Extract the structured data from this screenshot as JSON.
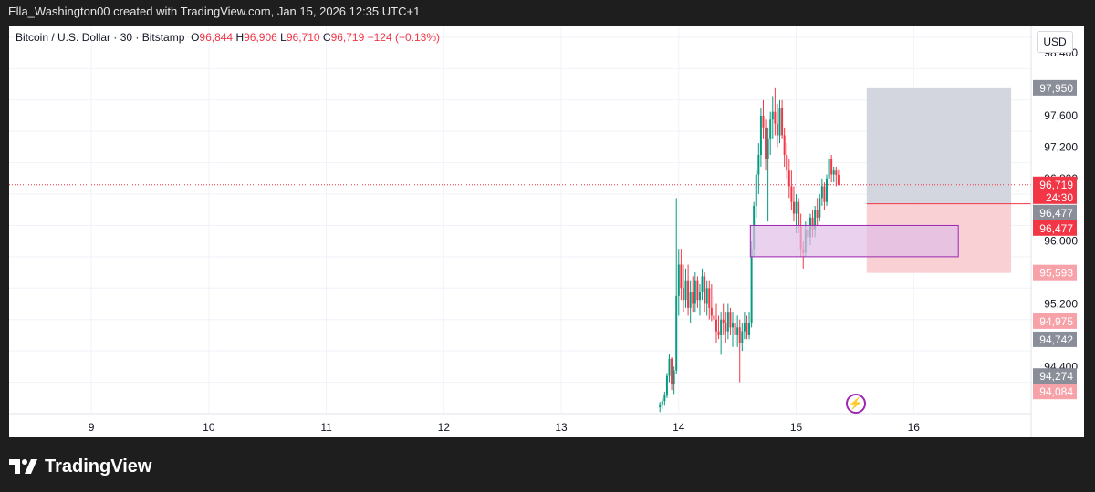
{
  "header": {
    "attribution": "Ella_Washington00 created with TradingView.com, Jan 15, 2026 12:35 UTC+1"
  },
  "legend": {
    "symbol": "Bitcoin / U.S. Dollar · 30 · Bitstamp",
    "open_label": "O",
    "open": "96,844",
    "high_label": "H",
    "high": "96,906",
    "low_label": "L",
    "low": "96,710",
    "close_label": "C",
    "close": "96,719",
    "change": "−124 (−0.13%)"
  },
  "currency_button": "USD",
  "brand": {
    "name": "TradingView"
  },
  "icons": {
    "flash": "flash-icon",
    "logo": "tradingview-logo-icon"
  },
  "colors": {
    "up": "#089981",
    "down": "#f23645",
    "target_zone": "#d1d4dc",
    "stop_zone": "#f8c9cc",
    "box": "#e1bee7",
    "box_border": "#9c27b0"
  },
  "chart_data": {
    "type": "candlestick",
    "x_tick_labels": [
      "9",
      "10",
      "11",
      "12",
      "13",
      "14",
      "15",
      "16"
    ],
    "x_ticks": [
      9,
      10,
      11,
      12,
      13,
      14,
      15,
      16
    ],
    "xlim": [
      8.3,
      17.0
    ],
    "ylim": [
      93800,
      98750
    ],
    "y_tick_labels": [
      {
        "v": 98400,
        "t": "98,400"
      },
      {
        "v": 97600,
        "t": "97,600"
      },
      {
        "v": 97200,
        "t": "97,200"
      },
      {
        "v": 96800,
        "t": "96,800"
      },
      {
        "v": 96000,
        "t": "96,000"
      },
      {
        "v": 95200,
        "t": "95,200"
      },
      {
        "v": 94400,
        "t": "94,400"
      }
    ],
    "price_labels": [
      {
        "v": 97950,
        "t": "97,950",
        "style": "gray"
      },
      {
        "v": 96719,
        "t": "96,719",
        "style": "red",
        "sub": "24:30"
      },
      {
        "v": 96477,
        "t": "96,477",
        "style": "gray"
      },
      {
        "v": 96477,
        "t": "96,477",
        "style": "red"
      },
      {
        "v": 95593,
        "t": "95,593",
        "style": "pink"
      },
      {
        "v": 94975,
        "t": "94,975",
        "style": "pink"
      },
      {
        "v": 94742,
        "t": "94,742",
        "style": "gray"
      },
      {
        "v": 94274,
        "t": "94,274",
        "style": "gray"
      },
      {
        "v": 94084,
        "t": "94,084",
        "style": "pink"
      }
    ],
    "last_price": 96719,
    "long_position": {
      "x_start": 15.6,
      "x_end": 16.83,
      "entry": 96477,
      "target": 97950,
      "stop": 95593
    },
    "zone_box": {
      "x_start": 14.61,
      "x_end": 16.38,
      "top": 96200,
      "bottom": 95800
    },
    "candles": [
      {
        "t": 13.84,
        "o": 93880,
        "h": 93950,
        "l": 93820,
        "c": 93920
      },
      {
        "t": 13.86,
        "o": 93920,
        "h": 94000,
        "l": 93860,
        "c": 93960
      },
      {
        "t": 13.88,
        "o": 93960,
        "h": 94080,
        "l": 93900,
        "c": 94040
      },
      {
        "t": 13.9,
        "o": 94030,
        "h": 94320,
        "l": 94000,
        "c": 94280
      },
      {
        "t": 13.92,
        "o": 94280,
        "h": 94560,
        "l": 94200,
        "c": 94500
      },
      {
        "t": 13.94,
        "o": 94500,
        "h": 94520,
        "l": 94100,
        "c": 94180
      },
      {
        "t": 13.96,
        "o": 94180,
        "h": 94400,
        "l": 94050,
        "c": 94350
      },
      {
        "t": 13.98,
        "o": 94350,
        "h": 96550,
        "l": 94300,
        "c": 95300
      },
      {
        "t": 14.0,
        "o": 95300,
        "h": 95900,
        "l": 95050,
        "c": 95700
      },
      {
        "t": 14.02,
        "o": 95700,
        "h": 95900,
        "l": 95250,
        "c": 95400
      },
      {
        "t": 14.04,
        "o": 95400,
        "h": 95700,
        "l": 95100,
        "c": 95250
      },
      {
        "t": 14.06,
        "o": 95250,
        "h": 95650,
        "l": 95150,
        "c": 95500
      },
      {
        "t": 14.08,
        "o": 95500,
        "h": 95700,
        "l": 95050,
        "c": 95150
      },
      {
        "t": 14.1,
        "o": 95150,
        "h": 95500,
        "l": 94950,
        "c": 95350
      },
      {
        "t": 14.12,
        "o": 95350,
        "h": 95550,
        "l": 95100,
        "c": 95200
      },
      {
        "t": 14.14,
        "o": 95200,
        "h": 95600,
        "l": 95100,
        "c": 95500
      },
      {
        "t": 14.16,
        "o": 95500,
        "h": 95550,
        "l": 95150,
        "c": 95250
      },
      {
        "t": 14.18,
        "o": 95250,
        "h": 95450,
        "l": 95050,
        "c": 95350
      },
      {
        "t": 14.2,
        "o": 95350,
        "h": 95650,
        "l": 95250,
        "c": 95550
      },
      {
        "t": 14.22,
        "o": 95550,
        "h": 95600,
        "l": 95100,
        "c": 95200
      },
      {
        "t": 14.24,
        "o": 95200,
        "h": 95500,
        "l": 95050,
        "c": 95400
      },
      {
        "t": 14.26,
        "o": 95400,
        "h": 95500,
        "l": 95000,
        "c": 95150
      },
      {
        "t": 14.28,
        "o": 95150,
        "h": 95450,
        "l": 94980,
        "c": 95050
      },
      {
        "t": 14.3,
        "o": 95050,
        "h": 95300,
        "l": 94900,
        "c": 95000
      },
      {
        "t": 14.32,
        "o": 95000,
        "h": 95200,
        "l": 94700,
        "c": 94850
      },
      {
        "t": 14.34,
        "o": 94850,
        "h": 95050,
        "l": 94750,
        "c": 94800
      },
      {
        "t": 14.36,
        "o": 94800,
        "h": 95100,
        "l": 94550,
        "c": 95000
      },
      {
        "t": 14.38,
        "o": 95000,
        "h": 95200,
        "l": 94800,
        "c": 94950
      },
      {
        "t": 14.4,
        "o": 94950,
        "h": 95100,
        "l": 94700,
        "c": 94850
      },
      {
        "t": 14.42,
        "o": 94850,
        "h": 95200,
        "l": 94750,
        "c": 95100
      },
      {
        "t": 14.44,
        "o": 95100,
        "h": 95150,
        "l": 94800,
        "c": 94900
      },
      {
        "t": 14.46,
        "o": 94900,
        "h": 95100,
        "l": 94650,
        "c": 94950
      },
      {
        "t": 14.48,
        "o": 94950,
        "h": 95050,
        "l": 94700,
        "c": 94800
      },
      {
        "t": 14.5,
        "o": 94800,
        "h": 95050,
        "l": 94650,
        "c": 94900
      },
      {
        "t": 14.52,
        "o": 94900,
        "h": 95000,
        "l": 94200,
        "c": 94700
      },
      {
        "t": 14.54,
        "o": 94700,
        "h": 94950,
        "l": 94600,
        "c": 94850
      },
      {
        "t": 14.56,
        "o": 94850,
        "h": 95100,
        "l": 94750,
        "c": 94950
      },
      {
        "t": 14.58,
        "o": 94950,
        "h": 95050,
        "l": 94750,
        "c": 94800
      },
      {
        "t": 14.6,
        "o": 94800,
        "h": 95100,
        "l": 94750,
        "c": 94950
      },
      {
        "t": 14.62,
        "o": 94950,
        "h": 96000,
        "l": 94900,
        "c": 95900
      },
      {
        "t": 14.64,
        "o": 95900,
        "h": 96500,
        "l": 95800,
        "c": 96450
      },
      {
        "t": 14.66,
        "o": 96450,
        "h": 96900,
        "l": 96300,
        "c": 96850
      },
      {
        "t": 14.68,
        "o": 96850,
        "h": 97250,
        "l": 96600,
        "c": 97100
      },
      {
        "t": 14.7,
        "o": 97100,
        "h": 97700,
        "l": 96950,
        "c": 97600
      },
      {
        "t": 14.72,
        "o": 97600,
        "h": 97800,
        "l": 97300,
        "c": 97450
      },
      {
        "t": 14.74,
        "o": 97450,
        "h": 97550,
        "l": 96900,
        "c": 97050
      },
      {
        "t": 14.76,
        "o": 97050,
        "h": 97450,
        "l": 96250,
        "c": 97300
      },
      {
        "t": 14.78,
        "o": 97300,
        "h": 97650,
        "l": 97100,
        "c": 97550
      },
      {
        "t": 14.8,
        "o": 97550,
        "h": 97850,
        "l": 97300,
        "c": 97650
      },
      {
        "t": 14.82,
        "o": 97650,
        "h": 97950,
        "l": 97350,
        "c": 97500
      },
      {
        "t": 14.84,
        "o": 97500,
        "h": 97750,
        "l": 97200,
        "c": 97350
      },
      {
        "t": 14.86,
        "o": 97350,
        "h": 97800,
        "l": 97250,
        "c": 97700
      },
      {
        "t": 14.88,
        "o": 97700,
        "h": 97800,
        "l": 97300,
        "c": 97350
      },
      {
        "t": 14.9,
        "o": 97350,
        "h": 97450,
        "l": 96950,
        "c": 97100
      },
      {
        "t": 14.92,
        "o": 97100,
        "h": 97250,
        "l": 96800,
        "c": 96900
      },
      {
        "t": 14.94,
        "o": 96900,
        "h": 97050,
        "l": 96550,
        "c": 96700
      },
      {
        "t": 14.96,
        "o": 96700,
        "h": 96900,
        "l": 96400,
        "c": 96500
      },
      {
        "t": 14.98,
        "o": 96500,
        "h": 96700,
        "l": 96250,
        "c": 96350
      },
      {
        "t": 15.0,
        "o": 96350,
        "h": 96600,
        "l": 96100,
        "c": 96500
      },
      {
        "t": 15.02,
        "o": 96500,
        "h": 96550,
        "l": 96100,
        "c": 96200
      },
      {
        "t": 15.04,
        "o": 96200,
        "h": 96350,
        "l": 95800,
        "c": 95900
      },
      {
        "t": 15.06,
        "o": 95900,
        "h": 96000,
        "l": 95650,
        "c": 95850
      },
      {
        "t": 15.08,
        "o": 95850,
        "h": 96250,
        "l": 95800,
        "c": 96150
      },
      {
        "t": 15.1,
        "o": 96150,
        "h": 96300,
        "l": 95950,
        "c": 96050
      },
      {
        "t": 15.12,
        "o": 96050,
        "h": 96350,
        "l": 95950,
        "c": 96300
      },
      {
        "t": 15.14,
        "o": 96300,
        "h": 96400,
        "l": 96050,
        "c": 96150
      },
      {
        "t": 15.16,
        "o": 96150,
        "h": 96450,
        "l": 96050,
        "c": 96400
      },
      {
        "t": 15.18,
        "o": 96400,
        "h": 96550,
        "l": 96200,
        "c": 96300
      },
      {
        "t": 15.2,
        "o": 96300,
        "h": 96600,
        "l": 96250,
        "c": 96550
      },
      {
        "t": 15.22,
        "o": 96550,
        "h": 96800,
        "l": 96450,
        "c": 96700
      },
      {
        "t": 15.24,
        "o": 96700,
        "h": 96750,
        "l": 96400,
        "c": 96500
      },
      {
        "t": 15.26,
        "o": 96500,
        "h": 96850,
        "l": 96450,
        "c": 96800
      },
      {
        "t": 15.28,
        "o": 96800,
        "h": 97150,
        "l": 96700,
        "c": 97050
      },
      {
        "t": 15.3,
        "o": 97050,
        "h": 97100,
        "l": 96750,
        "c": 96850
      },
      {
        "t": 15.32,
        "o": 96850,
        "h": 96950,
        "l": 96750,
        "c": 96900
      },
      {
        "t": 15.34,
        "o": 96900,
        "h": 96950,
        "l": 96700,
        "c": 96844
      },
      {
        "t": 15.36,
        "o": 96844,
        "h": 96906,
        "l": 96710,
        "c": 96719
      }
    ]
  }
}
